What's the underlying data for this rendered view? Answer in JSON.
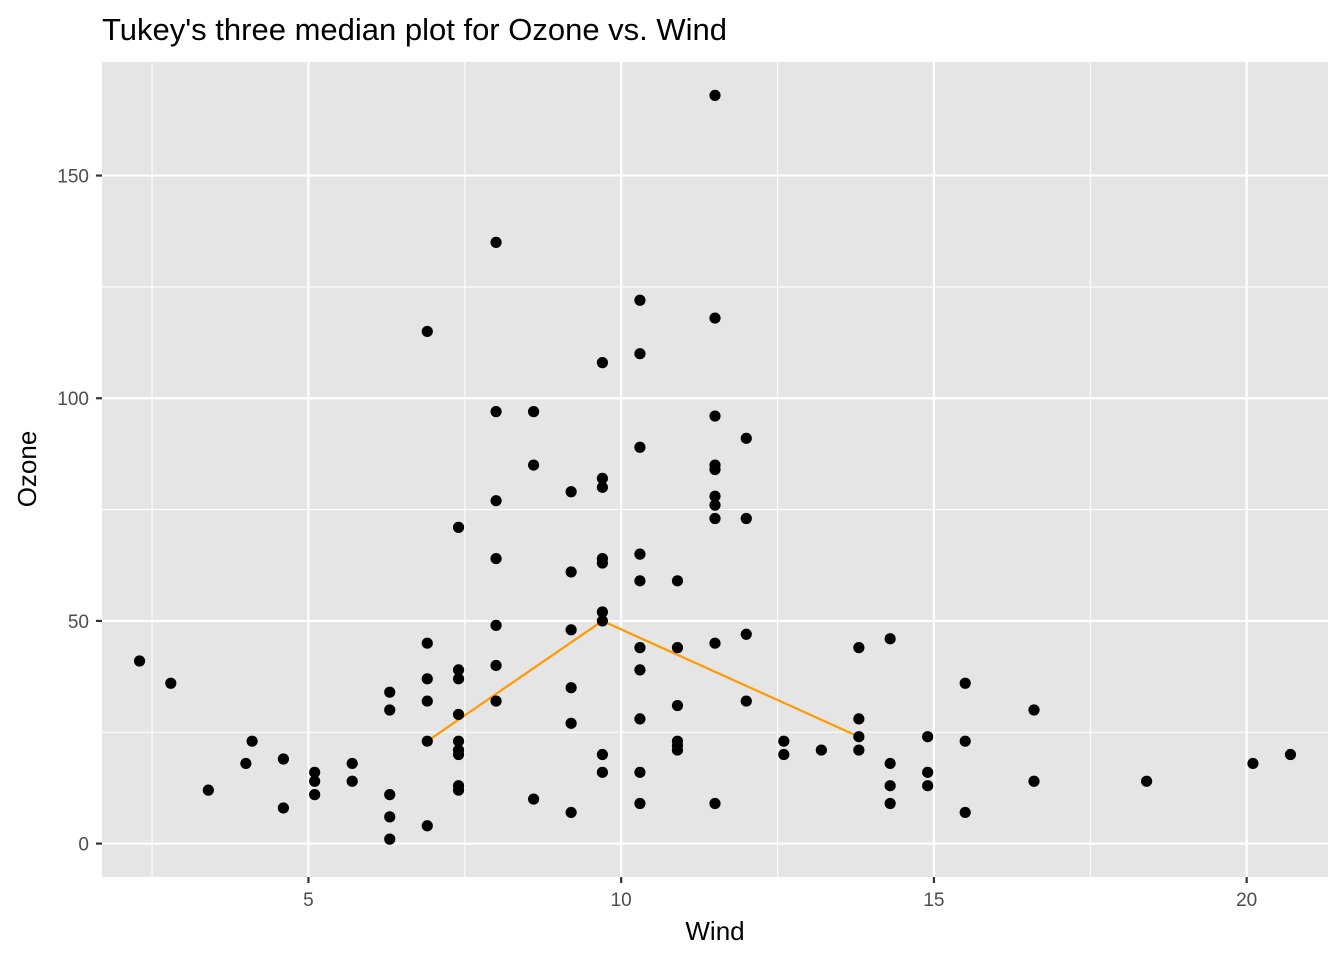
{
  "chart_data": {
    "type": "scatter",
    "title": "Tukey's three median plot for Ozone vs. Wind",
    "xlabel": "Wind",
    "ylabel": "Ozone",
    "xlim": [
      1.7,
      21.3
    ],
    "ylim": [
      -7.5,
      175.5
    ],
    "x_major_ticks": [
      5,
      10,
      15,
      20
    ],
    "x_tick_labels": [
      "5",
      "10",
      "15",
      "20"
    ],
    "y_major_ticks": [
      0,
      50,
      100,
      150
    ],
    "y_tick_labels": [
      "0",
      "50",
      "100",
      "150"
    ],
    "x_minor_ticks": [
      2.5,
      7.5,
      12.5,
      17.5
    ],
    "y_minor_ticks": [
      25,
      75,
      125
    ],
    "grid": true,
    "legend": "none",
    "points": [
      {
        "x": 2.3,
        "y": 41
      },
      {
        "x": 2.8,
        "y": 36
      },
      {
        "x": 3.4,
        "y": 12
      },
      {
        "x": 4.0,
        "y": 18
      },
      {
        "x": 4.1,
        "y": 23
      },
      {
        "x": 4.6,
        "y": 19
      },
      {
        "x": 4.6,
        "y": 8
      },
      {
        "x": 5.1,
        "y": 16
      },
      {
        "x": 5.1,
        "y": 14
      },
      {
        "x": 5.1,
        "y": 11
      },
      {
        "x": 5.7,
        "y": 18
      },
      {
        "x": 5.7,
        "y": 14
      },
      {
        "x": 6.3,
        "y": 34
      },
      {
        "x": 6.3,
        "y": 30
      },
      {
        "x": 6.3,
        "y": 11
      },
      {
        "x": 6.3,
        "y": 6
      },
      {
        "x": 6.3,
        "y": 1
      },
      {
        "x": 6.9,
        "y": 115
      },
      {
        "x": 6.9,
        "y": 45
      },
      {
        "x": 6.9,
        "y": 37
      },
      {
        "x": 6.9,
        "y": 32
      },
      {
        "x": 6.9,
        "y": 23
      },
      {
        "x": 6.9,
        "y": 4
      },
      {
        "x": 7.4,
        "y": 71
      },
      {
        "x": 7.4,
        "y": 39
      },
      {
        "x": 7.4,
        "y": 37
      },
      {
        "x": 7.4,
        "y": 29
      },
      {
        "x": 7.4,
        "y": 23
      },
      {
        "x": 7.4,
        "y": 21
      },
      {
        "x": 7.4,
        "y": 20
      },
      {
        "x": 7.4,
        "y": 13
      },
      {
        "x": 7.4,
        "y": 12
      },
      {
        "x": 8.0,
        "y": 135
      },
      {
        "x": 8.0,
        "y": 97
      },
      {
        "x": 8.0,
        "y": 77
      },
      {
        "x": 8.0,
        "y": 64
      },
      {
        "x": 8.0,
        "y": 49
      },
      {
        "x": 8.0,
        "y": 40
      },
      {
        "x": 8.0,
        "y": 32
      },
      {
        "x": 8.6,
        "y": 97
      },
      {
        "x": 8.6,
        "y": 85
      },
      {
        "x": 8.6,
        "y": 10
      },
      {
        "x": 9.2,
        "y": 79
      },
      {
        "x": 9.2,
        "y": 61
      },
      {
        "x": 9.2,
        "y": 48
      },
      {
        "x": 9.2,
        "y": 35
      },
      {
        "x": 9.2,
        "y": 27
      },
      {
        "x": 9.2,
        "y": 7
      },
      {
        "x": 9.7,
        "y": 108
      },
      {
        "x": 9.7,
        "y": 82
      },
      {
        "x": 9.7,
        "y": 80
      },
      {
        "x": 9.7,
        "y": 64
      },
      {
        "x": 9.7,
        "y": 63
      },
      {
        "x": 9.7,
        "y": 52
      },
      {
        "x": 9.7,
        "y": 50
      },
      {
        "x": 9.7,
        "y": 20
      },
      {
        "x": 9.7,
        "y": 16
      },
      {
        "x": 10.3,
        "y": 122
      },
      {
        "x": 10.3,
        "y": 110
      },
      {
        "x": 10.3,
        "y": 89
      },
      {
        "x": 10.3,
        "y": 65
      },
      {
        "x": 10.3,
        "y": 59
      },
      {
        "x": 10.3,
        "y": 44
      },
      {
        "x": 10.3,
        "y": 39
      },
      {
        "x": 10.3,
        "y": 28
      },
      {
        "x": 10.3,
        "y": 16
      },
      {
        "x": 10.3,
        "y": 9
      },
      {
        "x": 10.9,
        "y": 59
      },
      {
        "x": 10.9,
        "y": 44
      },
      {
        "x": 10.9,
        "y": 31
      },
      {
        "x": 10.9,
        "y": 23
      },
      {
        "x": 10.9,
        "y": 22
      },
      {
        "x": 10.9,
        "y": 21
      },
      {
        "x": 11.5,
        "y": 168
      },
      {
        "x": 11.5,
        "y": 118
      },
      {
        "x": 11.5,
        "y": 96
      },
      {
        "x": 11.5,
        "y": 85
      },
      {
        "x": 11.5,
        "y": 84
      },
      {
        "x": 11.5,
        "y": 78
      },
      {
        "x": 11.5,
        "y": 76
      },
      {
        "x": 11.5,
        "y": 73
      },
      {
        "x": 11.5,
        "y": 45
      },
      {
        "x": 11.5,
        "y": 9
      },
      {
        "x": 12.0,
        "y": 91
      },
      {
        "x": 12.0,
        "y": 73
      },
      {
        "x": 12.0,
        "y": 47
      },
      {
        "x": 12.0,
        "y": 32
      },
      {
        "x": 12.6,
        "y": 23
      },
      {
        "x": 12.6,
        "y": 20
      },
      {
        "x": 13.2,
        "y": 21
      },
      {
        "x": 13.8,
        "y": 44
      },
      {
        "x": 13.8,
        "y": 28
      },
      {
        "x": 13.8,
        "y": 24
      },
      {
        "x": 13.8,
        "y": 21
      },
      {
        "x": 14.3,
        "y": 46
      },
      {
        "x": 14.3,
        "y": 18
      },
      {
        "x": 14.3,
        "y": 13
      },
      {
        "x": 14.3,
        "y": 9
      },
      {
        "x": 14.9,
        "y": 24
      },
      {
        "x": 14.9,
        "y": 16
      },
      {
        "x": 14.9,
        "y": 13
      },
      {
        "x": 15.5,
        "y": 36
      },
      {
        "x": 15.5,
        "y": 23
      },
      {
        "x": 15.5,
        "y": 7
      },
      {
        "x": 16.6,
        "y": 30
      },
      {
        "x": 16.6,
        "y": 14
      },
      {
        "x": 18.4,
        "y": 14
      },
      {
        "x": 20.1,
        "y": 18
      },
      {
        "x": 20.7,
        "y": 20
      }
    ],
    "median_line": {
      "color": "#FF9900",
      "points": [
        {
          "x": 6.9,
          "y": 23
        },
        {
          "x": 9.7,
          "y": 50
        },
        {
          "x": 13.8,
          "y": 24
        }
      ]
    },
    "colors": {
      "panel_background": "#E5E5E5",
      "grid_major": "#FFFFFF",
      "point": "#000000"
    }
  }
}
